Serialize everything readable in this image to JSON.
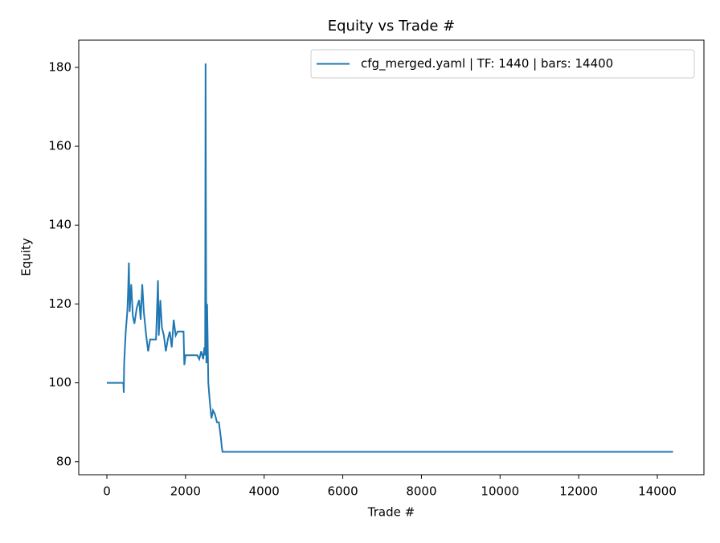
{
  "chart_data": {
    "type": "line",
    "title": "Equity vs Trade #",
    "xlabel": "Trade #",
    "ylabel": "Equity",
    "x": [
      0,
      420,
      430,
      440,
      480,
      520,
      540,
      560,
      580,
      620,
      660,
      700,
      760,
      820,
      860,
      900,
      940,
      1000,
      1050,
      1100,
      1250,
      1300,
      1320,
      1360,
      1400,
      1450,
      1500,
      1550,
      1600,
      1650,
      1700,
      1750,
      1800,
      1950,
      1970,
      2000,
      2300,
      2350,
      2400,
      2450,
      2480,
      2500,
      2510,
      2520,
      2530,
      2550,
      2580,
      2620,
      2660,
      2700,
      2750,
      2800,
      2850,
      2900,
      2920,
      2940,
      3000,
      14400
    ],
    "series": [
      {
        "name": "cfg_merged.yaml | TF: 1440 | bars: 14400",
        "color": "#1f77b4",
        "values": [
          100,
          100,
          97.5,
          105,
          113,
          118,
          123,
          130.5,
          118,
          125,
          117,
          115,
          119,
          121,
          116,
          125,
          118,
          112,
          108,
          111,
          111,
          126,
          112,
          121,
          114,
          112,
          108,
          111,
          113,
          109,
          116,
          112,
          113,
          113,
          104.5,
          107,
          107,
          106,
          108,
          106,
          109,
          107,
          181,
          140,
          105,
          120,
          100,
          95,
          91,
          93,
          92,
          90,
          90,
          86,
          84,
          82.5,
          82.5,
          82.5
        ]
      }
    ],
    "xlim": [
      -715,
      15185
    ],
    "xticks": [
      0,
      2000,
      4000,
      6000,
      8000,
      10000,
      12000,
      14000
    ],
    "ylim": [
      76.7,
      186.9
    ],
    "yticks": [
      80,
      100,
      120,
      140,
      160,
      180
    ],
    "legend": "upper right"
  }
}
